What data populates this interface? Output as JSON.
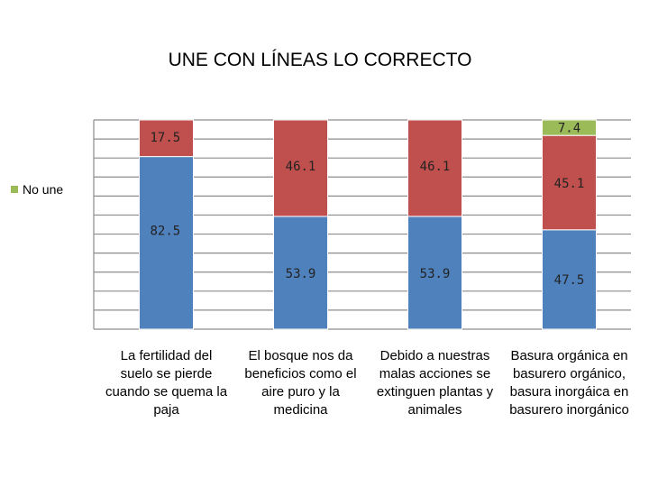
{
  "chart_data": {
    "type": "bar",
    "stacked": true,
    "title": "UNE CON LÍNEAS LO CORRECTO",
    "categories": [
      [
        "La fertilidad del",
        "suelo se pierde",
        "cuando se quema la",
        "paja"
      ],
      [
        "El bosque nos da",
        "beneficios como el",
        "aire puro y la",
        "medicina"
      ],
      [
        "Debido a nuestras",
        "malas acciones se",
        "extinguen plantas y",
        "animales"
      ],
      [
        "Basura orgánica en",
        "basurero orgánico,",
        "basura inorgáica en",
        "basurero inorgánico"
      ]
    ],
    "series": [
      {
        "color": "#4f81bd",
        "values": [
          82.5,
          53.9,
          53.9,
          47.5
        ],
        "labels": [
          "82.5",
          "53.9",
          "53.9",
          "47.5"
        ]
      },
      {
        "color": "#c0504d",
        "values": [
          17.5,
          46.1,
          46.1,
          45.1
        ],
        "labels": [
          "17.5",
          "46.1",
          "46.1",
          "45.1"
        ]
      },
      {
        "name": "No une",
        "color": "#9bbb59",
        "values": [
          0,
          0,
          0,
          7.4
        ],
        "labels": [
          "",
          "",
          "",
          "7.4"
        ]
      }
    ],
    "ylim": [
      0,
      100
    ],
    "grid": true,
    "legend_position": "left"
  }
}
